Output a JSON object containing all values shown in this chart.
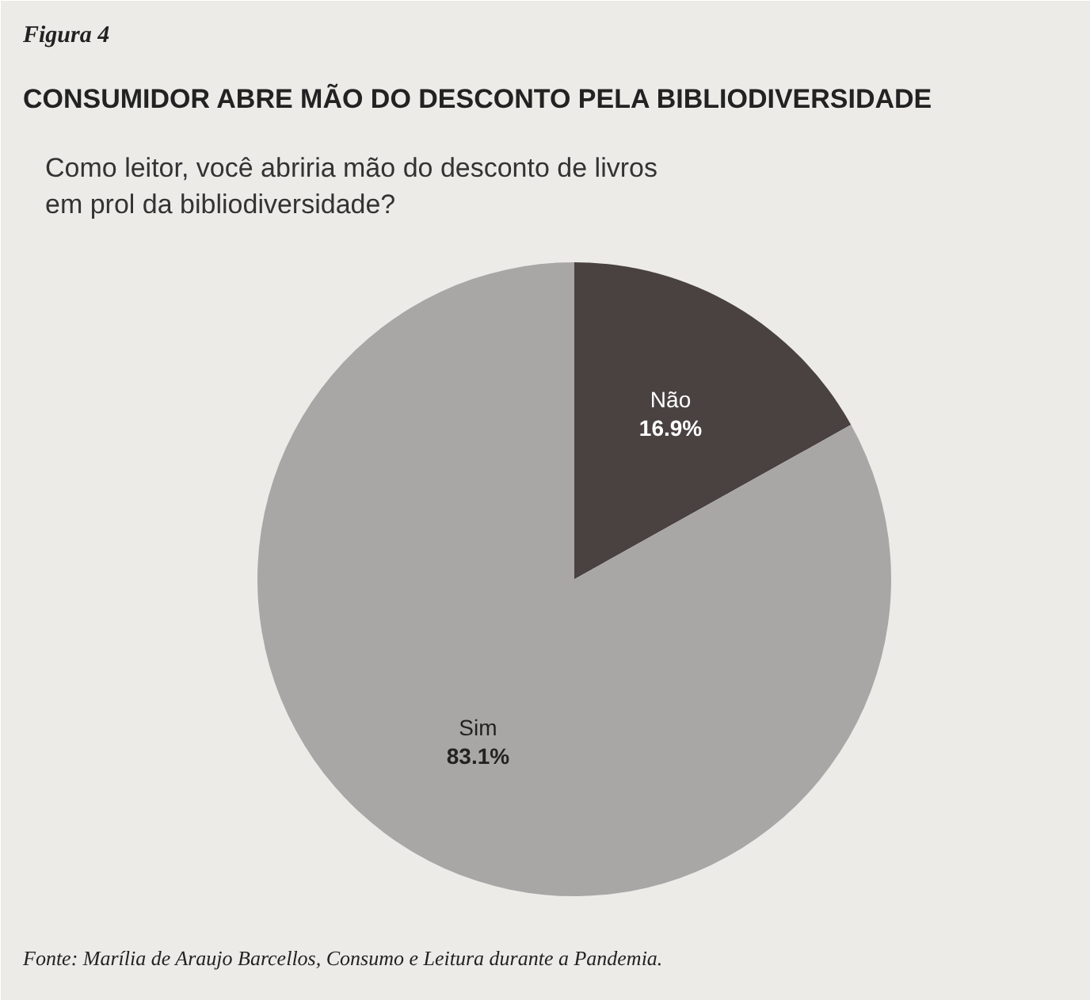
{
  "chart_data": {
    "type": "pie",
    "title": "CONSUMIDOR ABRE MÃO DO DESCONTO PELA BIBLIODIVERSIDADE",
    "subtitle": "Como leitor, você abriria mão do desconto de livros\nem prol da bibliodiversidade?",
    "annotations": [
      "Figura 4",
      "Fonte: Marília de Araujo Barcellos, Consumo e Leitura durante a Pandemia."
    ],
    "categories": [
      "Não",
      "Sim"
    ],
    "values": [
      16.9,
      83.1
    ],
    "colors": [
      "#4a4141",
      "#a9a6a6"
    ],
    "value_labels": [
      "16.9%",
      "83.1%"
    ],
    "legend": false
  }
}
